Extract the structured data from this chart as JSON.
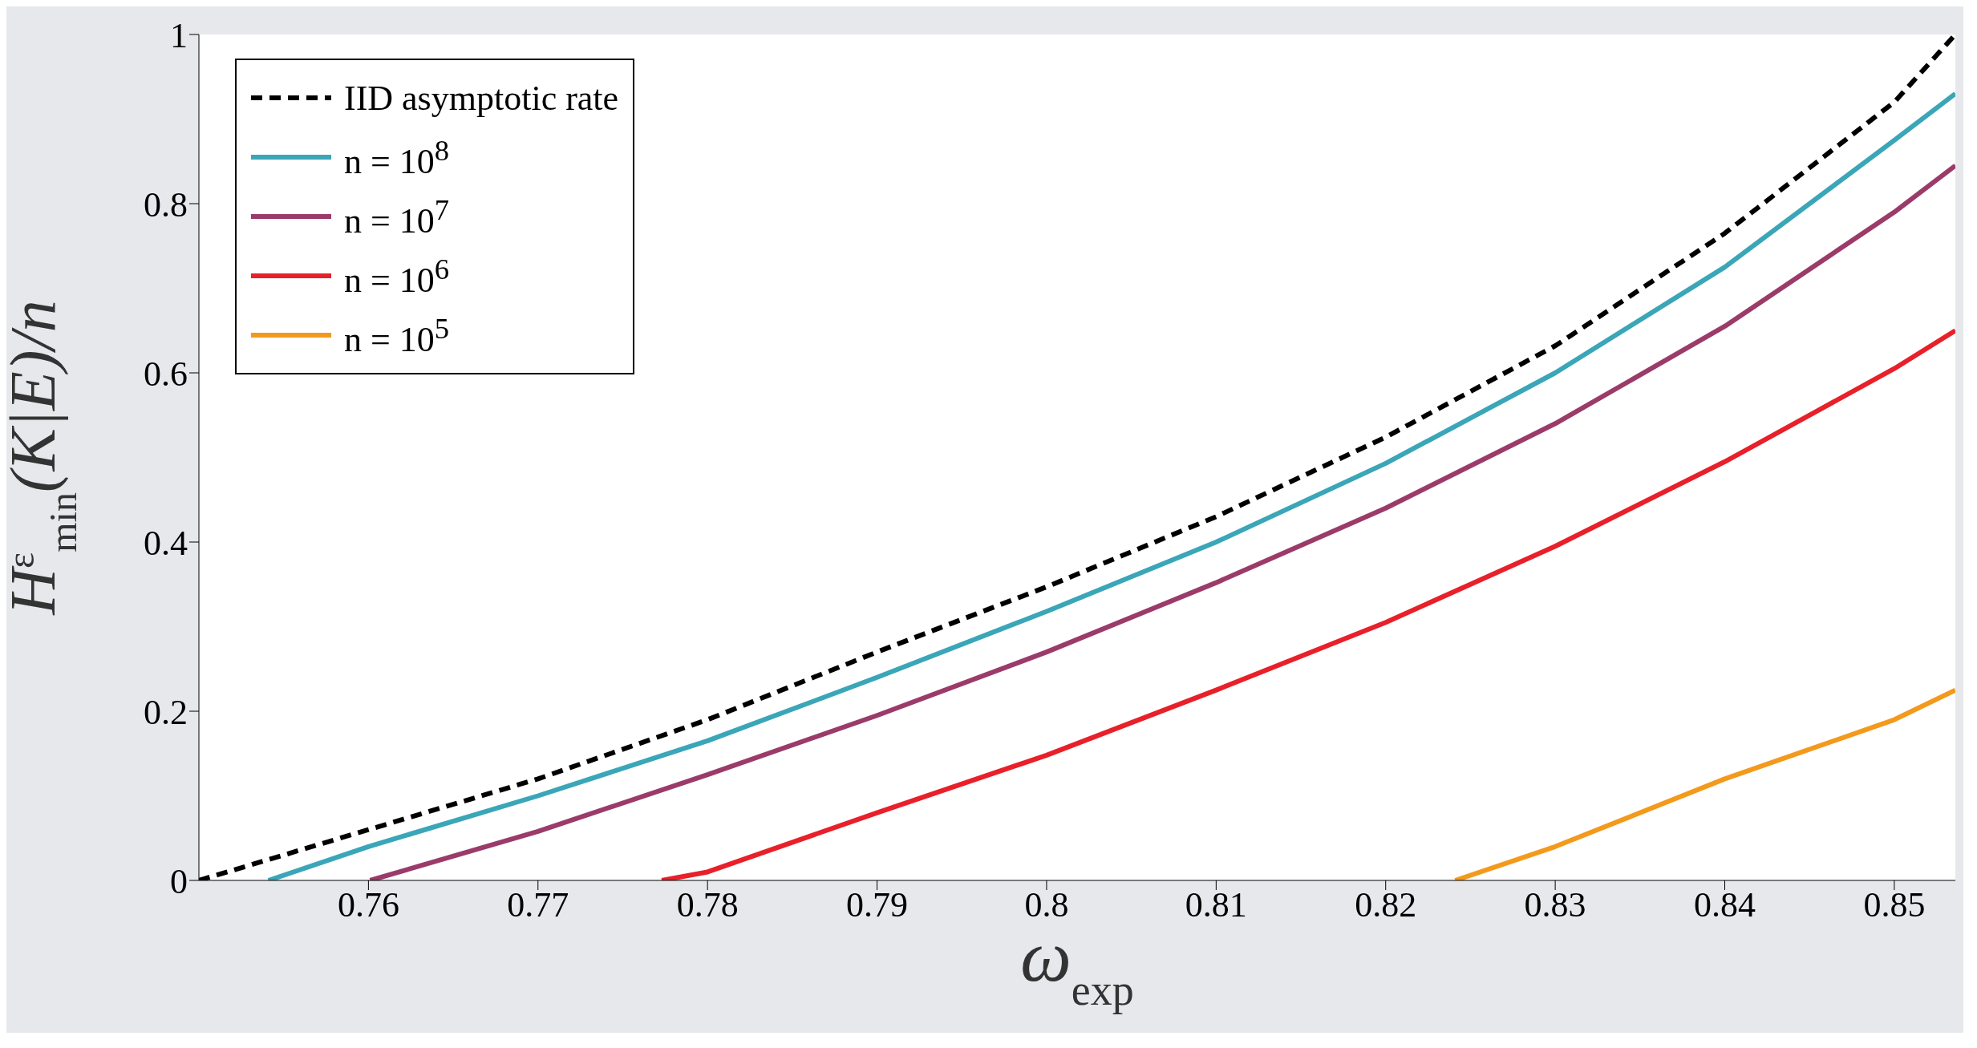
{
  "chart_data": {
    "type": "line",
    "xlabel": "ω$_{exp}$",
    "ylabel": "H$^{ε}$$_{min}$(K|E)/n",
    "xlim": [
      0.75,
      0.8536
    ],
    "ylim": [
      0,
      1
    ],
    "xticks": [
      0.76,
      0.77,
      0.78,
      0.79,
      0.8,
      0.81,
      0.82,
      0.83,
      0.84,
      0.85
    ],
    "yticks": [
      0,
      0.2,
      0.4,
      0.6,
      0.8,
      1
    ],
    "grid": false,
    "legend": "top left",
    "marker": "none",
    "series": [
      {
        "name": "IID asymptotic rate",
        "color": "#000000",
        "line_style": "dashed",
        "x": [
          0.75,
          0.76,
          0.77,
          0.78,
          0.79,
          0.8,
          0.81,
          0.82,
          0.83,
          0.84,
          0.85,
          0.8536
        ],
        "values": [
          0,
          0.06,
          0.12,
          0.19,
          0.27,
          0.347,
          0.43,
          0.524,
          0.632,
          0.765,
          0.92,
          1
        ]
      },
      {
        "name": "n = 10$^{8}$",
        "color": "#3aa6b8",
        "line_style": "solid",
        "x": [
          0.7541,
          0.76,
          0.77,
          0.78,
          0.79,
          0.8,
          0.81,
          0.82,
          0.83,
          0.84,
          0.85,
          0.8536
        ],
        "values": [
          0,
          0.04,
          0.1,
          0.165,
          0.24,
          0.318,
          0.4,
          0.493,
          0.6,
          0.725,
          0.875,
          0.93
        ]
      },
      {
        "name": "n = 10$^{7}$",
        "color": "#9b3b6a",
        "line_style": "solid",
        "x": [
          0.7601,
          0.77,
          0.78,
          0.79,
          0.8,
          0.81,
          0.82,
          0.83,
          0.84,
          0.85,
          0.8536
        ],
        "values": [
          0,
          0.058,
          0.125,
          0.195,
          0.27,
          0.352,
          0.44,
          0.54,
          0.655,
          0.79,
          0.845
        ]
      },
      {
        "name": "n = 10$^{6}$",
        "color": "#e8202a",
        "line_style": "solid",
        "x": [
          0.7773,
          0.78,
          0.79,
          0.8,
          0.81,
          0.82,
          0.83,
          0.84,
          0.85,
          0.8536
        ],
        "values": [
          0,
          0.01,
          0.08,
          0.148,
          0.225,
          0.305,
          0.395,
          0.495,
          0.605,
          0.65
        ]
      },
      {
        "name": "n = 10$^{5}$",
        "color": "#f39a1d",
        "line_style": "solid",
        "x": [
          0.8241,
          0.83,
          0.84,
          0.85,
          0.8536
        ],
        "values": [
          0,
          0.04,
          0.12,
          0.19,
          0.225
        ]
      }
    ]
  }
}
